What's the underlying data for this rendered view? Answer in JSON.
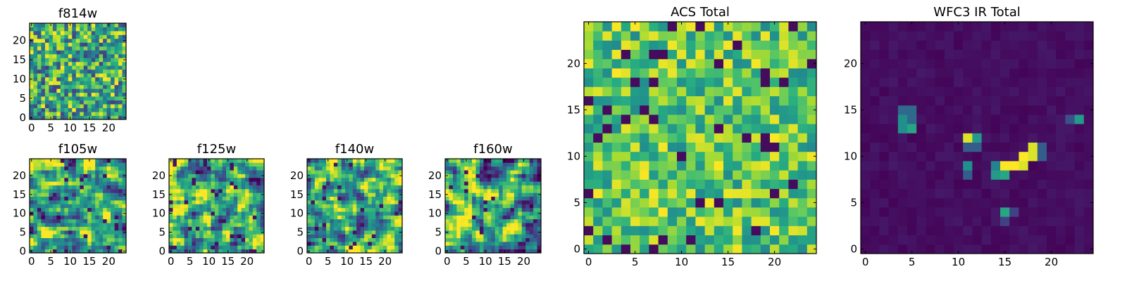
{
  "chart_data": [
    {
      "type": "heatmap",
      "title": "f814w",
      "grid_size": 25,
      "colormap": "viridis",
      "xlim": [
        0,
        24
      ],
      "ylim": [
        0,
        24
      ],
      "x_ticks": [
        "0",
        "5",
        "10",
        "15",
        "20"
      ],
      "y_ticks": [
        "0",
        "5",
        "10",
        "15",
        "20"
      ],
      "value_range": [
        0,
        1
      ],
      "pattern": "noise",
      "seed": 11
    },
    {
      "type": "heatmap",
      "title": "f105w",
      "grid_size": 25,
      "colormap": "viridis",
      "xlim": [
        0,
        24
      ],
      "ylim": [
        0,
        24
      ],
      "x_ticks": [
        "0",
        "5",
        "10",
        "15",
        "20"
      ],
      "y_ticks": [
        "0",
        "5",
        "10",
        "15",
        "20"
      ],
      "value_range": [
        0,
        1
      ],
      "pattern": "smooth",
      "seed": 23
    },
    {
      "type": "heatmap",
      "title": "f125w",
      "grid_size": 25,
      "colormap": "viridis",
      "xlim": [
        0,
        24
      ],
      "ylim": [
        0,
        24
      ],
      "x_ticks": [
        "0",
        "5",
        "10",
        "15",
        "20"
      ],
      "y_ticks": [
        "0",
        "5",
        "10",
        "15",
        "20"
      ],
      "value_range": [
        0,
        1
      ],
      "pattern": "smooth",
      "seed": 37
    },
    {
      "type": "heatmap",
      "title": "f140w",
      "grid_size": 25,
      "colormap": "viridis",
      "xlim": [
        0,
        24
      ],
      "ylim": [
        0,
        24
      ],
      "x_ticks": [
        "0",
        "5",
        "10",
        "15",
        "20"
      ],
      "y_ticks": [
        "0",
        "5",
        "10",
        "15",
        "20"
      ],
      "value_range": [
        0,
        1
      ],
      "pattern": "smooth",
      "seed": 41
    },
    {
      "type": "heatmap",
      "title": "f160w",
      "grid_size": 25,
      "colormap": "viridis",
      "xlim": [
        0,
        24
      ],
      "ylim": [
        0,
        24
      ],
      "x_ticks": [
        "0",
        "5",
        "10",
        "15",
        "20"
      ],
      "y_ticks": [
        "0",
        "5",
        "10",
        "15",
        "20"
      ],
      "value_range": [
        0,
        1
      ],
      "pattern": "smooth",
      "seed": 53
    },
    {
      "type": "heatmap",
      "title": "ACS Total",
      "grid_size": 25,
      "colormap": "viridis",
      "xlim": [
        0,
        24
      ],
      "ylim": [
        0,
        24
      ],
      "x_ticks": [
        "0",
        "5",
        "10",
        "15",
        "20"
      ],
      "y_ticks": [
        "0",
        "5",
        "10",
        "15",
        "20"
      ],
      "value_range": [
        0,
        1
      ],
      "pattern": "noise_bright",
      "seed": 67
    },
    {
      "type": "heatmap",
      "title": "WFC3 IR Total",
      "grid_size": 25,
      "colormap": "viridis",
      "xlim": [
        0,
        24
      ],
      "ylim": [
        0,
        24
      ],
      "x_ticks": [
        "0",
        "5",
        "10",
        "15",
        "20"
      ],
      "y_ticks": [
        "0",
        "5",
        "10",
        "15",
        "20"
      ],
      "value_range": [
        0,
        1
      ],
      "pattern": "sparse",
      "seed": 79,
      "bright_pixels": [
        {
          "x": 4,
          "y": 15,
          "v": 0.35
        },
        {
          "x": 5,
          "y": 15,
          "v": 0.35
        },
        {
          "x": 4,
          "y": 14,
          "v": 0.5
        },
        {
          "x": 5,
          "y": 14,
          "v": 0.35
        },
        {
          "x": 4,
          "y": 13,
          "v": 0.5
        },
        {
          "x": 5,
          "y": 13,
          "v": 0.6
        },
        {
          "x": 22,
          "y": 14,
          "v": 0.25
        },
        {
          "x": 23,
          "y": 14,
          "v": 0.55
        },
        {
          "x": 11,
          "y": 12,
          "v": 0.95
        },
        {
          "x": 12,
          "y": 12,
          "v": 0.55
        },
        {
          "x": 11,
          "y": 11,
          "v": 0.3
        },
        {
          "x": 12,
          "y": 11,
          "v": 0.3
        },
        {
          "x": 18,
          "y": 11,
          "v": 0.95
        },
        {
          "x": 19,
          "y": 11,
          "v": 0.3
        },
        {
          "x": 17,
          "y": 10,
          "v": 1.0
        },
        {
          "x": 18,
          "y": 10,
          "v": 0.95
        },
        {
          "x": 19,
          "y": 10,
          "v": 0.3
        },
        {
          "x": 15,
          "y": 9,
          "v": 1.0
        },
        {
          "x": 16,
          "y": 9,
          "v": 1.0
        },
        {
          "x": 17,
          "y": 9,
          "v": 0.95
        },
        {
          "x": 11,
          "y": 9,
          "v": 0.5
        },
        {
          "x": 14,
          "y": 9,
          "v": 0.45
        },
        {
          "x": 14,
          "y": 8,
          "v": 0.55
        },
        {
          "x": 15,
          "y": 8,
          "v": 0.6
        },
        {
          "x": 11,
          "y": 8,
          "v": 0.3
        },
        {
          "x": 15,
          "y": 4,
          "v": 0.6
        },
        {
          "x": 16,
          "y": 4,
          "v": 0.2
        },
        {
          "x": 15,
          "y": 3,
          "v": 0.2
        }
      ]
    }
  ]
}
